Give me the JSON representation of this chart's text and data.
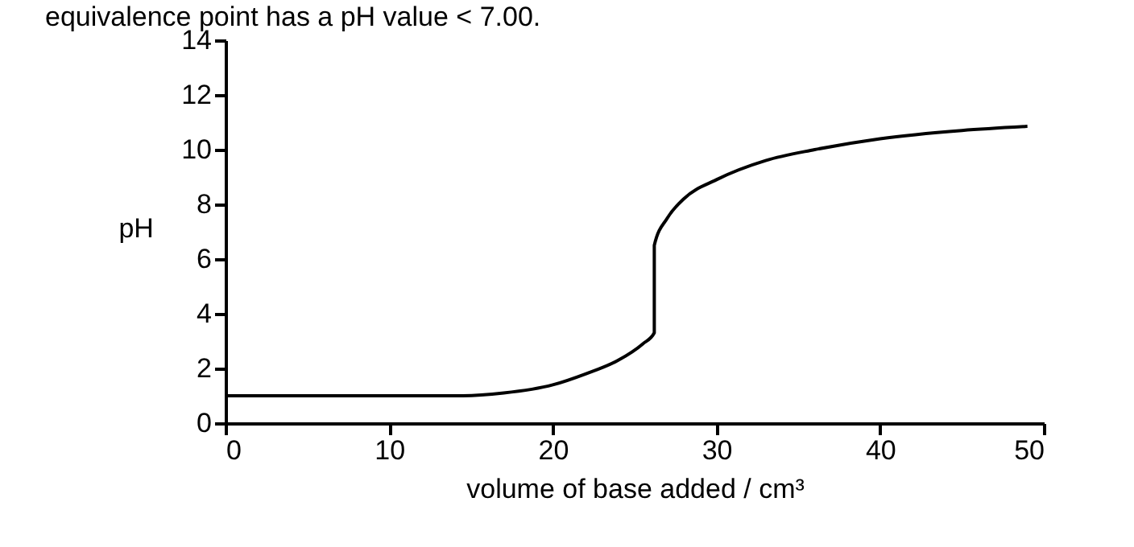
{
  "chart_data": {
    "type": "line",
    "xlabel": "volume of base added / cm³",
    "ylabel": "pH",
    "annotations": [
      "equivalence point has a pH value < 7.00."
    ],
    "series": [
      {
        "color": "#000000",
        "x": [
          0,
          14.5,
          17,
          20,
          22,
          24,
          25.5,
          26.2,
          26.2,
          27,
          28,
          30,
          33,
          36,
          40,
          45,
          49
        ],
        "values": [
          1,
          1,
          1.1,
          1.4,
          1.8,
          2.3,
          2.9,
          3.3,
          6.5,
          7.5,
          8.2,
          8.9,
          9.6,
          10.0,
          10.4,
          10.7,
          10.85
        ]
      }
    ],
    "xlim": [
      0,
      50
    ],
    "xticks": [
      0,
      10,
      20,
      30,
      40,
      50
    ],
    "ylim": [
      0,
      14
    ],
    "yticks": [
      0,
      2,
      4,
      6,
      8,
      10,
      12,
      14
    ],
    "grid": false,
    "marker": "none",
    "line_style": "solid"
  }
}
